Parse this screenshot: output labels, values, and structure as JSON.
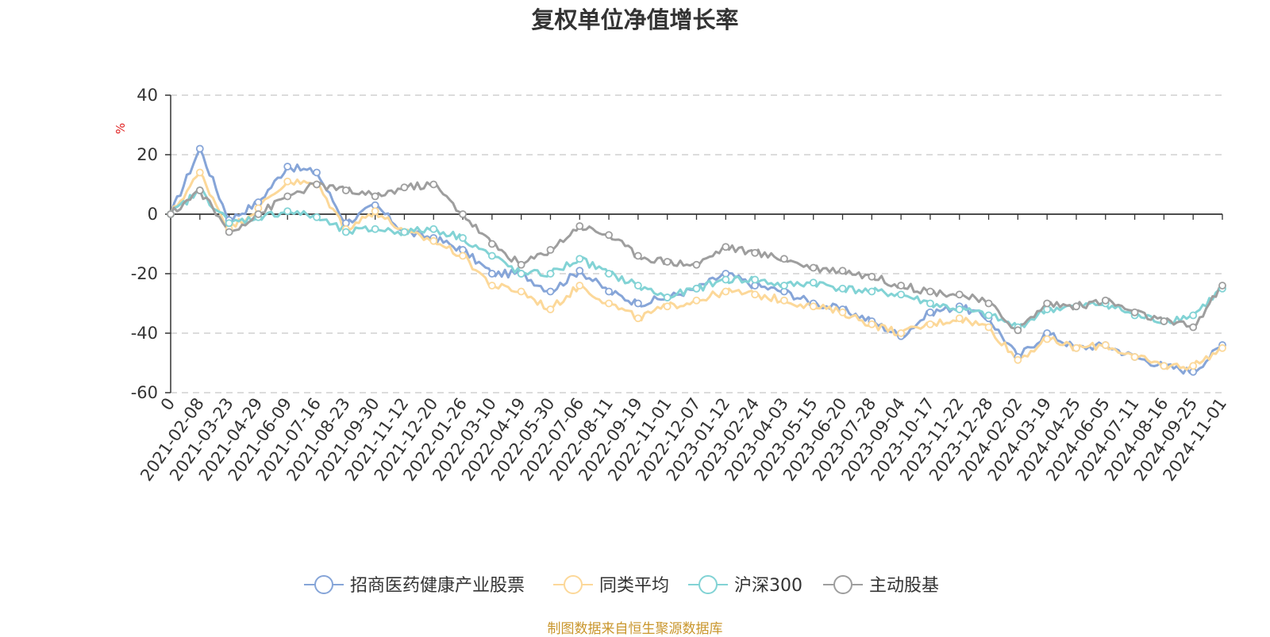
{
  "chart_data": {
    "type": "line",
    "title": "复权单位净值增长率",
    "ylabel": "%",
    "xlabel": "",
    "ylim": [
      -60,
      40
    ],
    "yticks": [
      40,
      20,
      0,
      -20,
      -40,
      -60
    ],
    "grid": true,
    "legend_position": "bottom",
    "source": "制图数据来自恒生聚源数据库",
    "x": [
      "0",
      "2021-02-08",
      "2021-03-23",
      "2021-04-29",
      "2021-06-09",
      "2021-07-16",
      "2021-08-23",
      "2021-09-30",
      "2021-11-12",
      "2021-12-20",
      "2022-01-26",
      "2022-03-10",
      "2022-04-19",
      "2022-05-30",
      "2022-07-06",
      "2022-08-11",
      "2022-09-19",
      "2022-11-01",
      "2022-12-07",
      "2023-01-12",
      "2023-02-24",
      "2023-04-03",
      "2023-05-15",
      "2023-06-20",
      "2023-07-28",
      "2023-09-04",
      "2023-10-17",
      "2023-11-22",
      "2023-12-28",
      "2024-02-02",
      "2024-03-19",
      "2024-04-25",
      "2024-06-05",
      "2024-07-11",
      "2024-08-16",
      "2024-09-25",
      "2024-11-01"
    ],
    "series": [
      {
        "name": "招商医药健康产业股票",
        "color": "#86a5d8",
        "values": [
          0,
          22,
          -2,
          4,
          16,
          14,
          -3,
          3,
          -6,
          -8,
          -12,
          -20,
          -20,
          -26,
          -19,
          -26,
          -30,
          -28,
          -25,
          -20,
          -24,
          -26,
          -30,
          -32,
          -36,
          -41,
          -33,
          -31,
          -35,
          -48,
          -40,
          -45,
          -44,
          -48,
          -51,
          -53,
          -44
        ]
      },
      {
        "name": "同类平均",
        "color": "#fcd899",
        "values": [
          0,
          14,
          -5,
          2,
          11,
          10,
          -5,
          1,
          -6,
          -9,
          -14,
          -24,
          -26,
          -32,
          -24,
          -30,
          -35,
          -31,
          -29,
          -26,
          -27,
          -29,
          -31,
          -33,
          -37,
          -40,
          -37,
          -35,
          -38,
          -49,
          -42,
          -45,
          -44,
          -48,
          -51,
          -51,
          -45
        ]
      },
      {
        "name": "沪深300",
        "color": "#82d3d5",
        "values": [
          0,
          8,
          -3,
          -1,
          1,
          -1,
          -6,
          -5,
          -6,
          -5,
          -8,
          -14,
          -20,
          -20,
          -15,
          -20,
          -24,
          -28,
          -25,
          -22,
          -22,
          -24,
          -23,
          -25,
          -26,
          -27,
          -30,
          -32,
          -34,
          -38,
          -32,
          -31,
          -30,
          -34,
          -36,
          -34,
          -25
        ]
      },
      {
        "name": "主动股基",
        "color": "#9e9e9e",
        "values": [
          0,
          8,
          -6,
          0,
          6,
          10,
          8,
          6,
          9,
          10,
          0,
          -10,
          -17,
          -12,
          -4,
          -7,
          -14,
          -16,
          -17,
          -11,
          -13,
          -15,
          -18,
          -19,
          -21,
          -24,
          -26,
          -27,
          -30,
          -39,
          -30,
          -31,
          -29,
          -33,
          -36,
          -38,
          -24
        ]
      }
    ]
  }
}
